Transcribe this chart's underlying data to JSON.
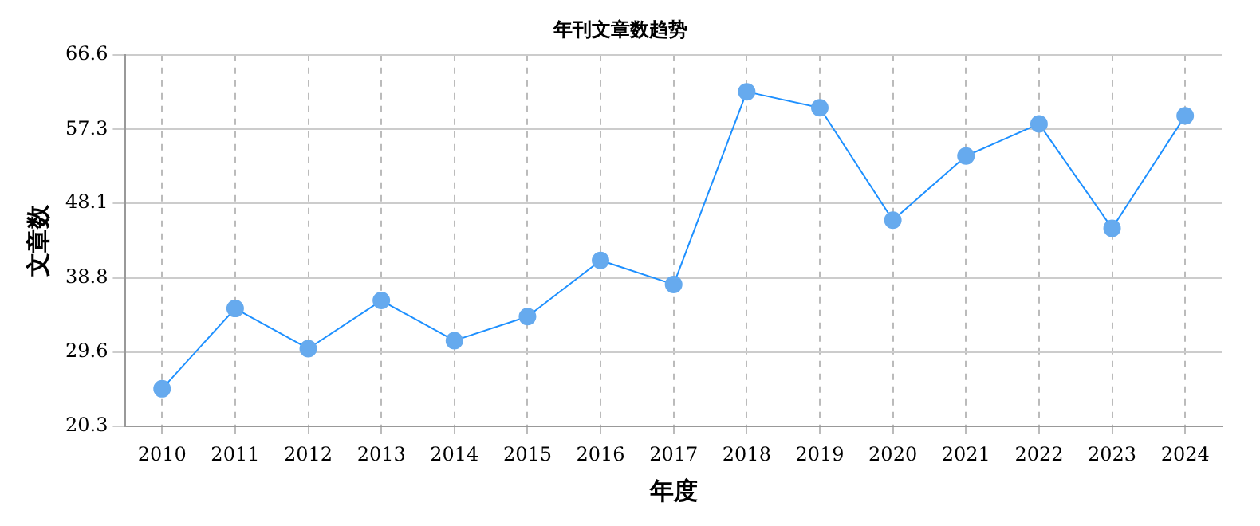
{
  "chart_data": {
    "type": "line",
    "title": "年刊文章数趋势",
    "xlabel": "年度",
    "ylabel": "文章数",
    "categories": [
      "2010",
      "2011",
      "2012",
      "2013",
      "2014",
      "2015",
      "2016",
      "2017",
      "2018",
      "2019",
      "2020",
      "2021",
      "2022",
      "2023",
      "2024"
    ],
    "series": [
      {
        "color": "#1e90ff",
        "values": [
          25,
          35,
          30,
          36,
          31,
          34,
          41,
          38,
          62,
          60,
          46,
          54,
          58,
          45,
          59
        ]
      }
    ],
    "ylim": [
      20.3,
      66.6
    ],
    "yticks": [
      20.3,
      29.6,
      38.8,
      48.1,
      57.3,
      66.6
    ],
    "grid": true,
    "marker": "circle",
    "line_style": "solid",
    "legend": false
  }
}
